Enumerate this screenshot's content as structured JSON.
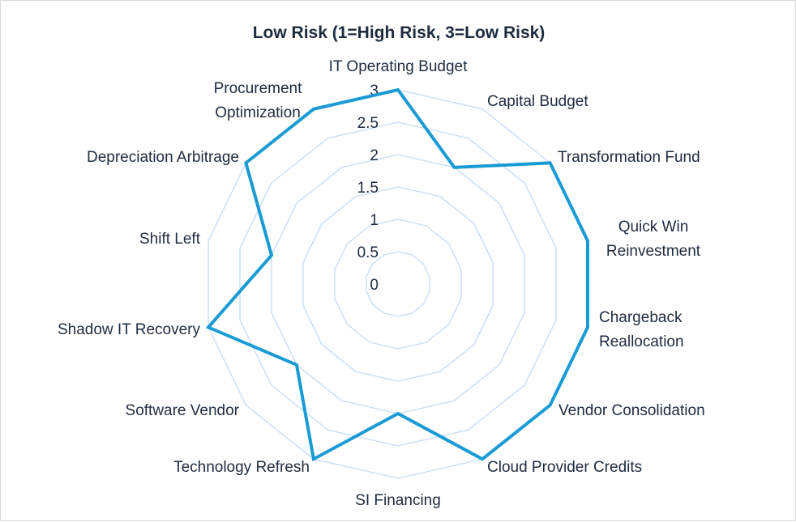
{
  "chart_data": {
    "type": "radar",
    "title": "Low Risk (1=High Risk, 3=Low Risk)",
    "categories": [
      "IT Operating Budget",
      "Capital Budget",
      "Transformation Fund",
      "Quick Win Reinvestment",
      "Chargeback Reallocation",
      "Vendor Consolidation",
      "Cloud Provider Credits",
      "SI Financing",
      "Technology Refresh",
      "Software Vendor",
      "Shadow IT Recovery",
      "Shift Left",
      "Depreciation Arbitrage",
      "Procurement Optimization"
    ],
    "series": [
      {
        "name": "Low Risk",
        "values": [
          3,
          2,
          3,
          3,
          3,
          3,
          3,
          2,
          3,
          2,
          3,
          2,
          3,
          3
        ]
      }
    ],
    "rlim": [
      0,
      3
    ],
    "ticks": [
      "0",
      "0.5",
      "1",
      "1.5",
      "2",
      "2.5",
      "3"
    ],
    "grid": true,
    "colors": {
      "series": "#1a9bd4",
      "grid": "#c6dbf1",
      "text": "#1d2b3f"
    }
  }
}
